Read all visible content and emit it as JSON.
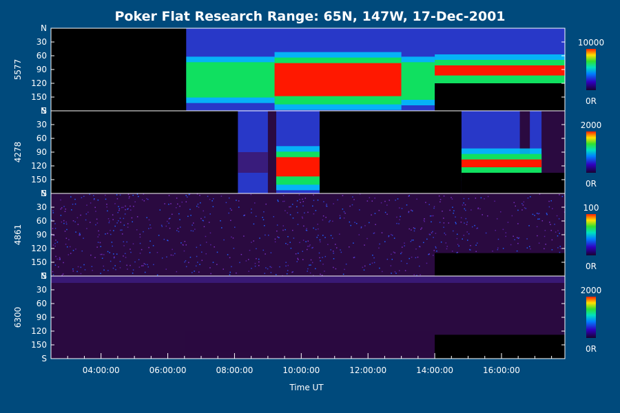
{
  "chart_data": {
    "type": "heatmap",
    "title": "Poker Flat Research Range: 65N, 147W, 17-Dec-2001",
    "xlabel": "Time UT",
    "x_ticks": [
      "04:00:00",
      "06:00:00",
      "08:00:00",
      "10:00:00",
      "12:00:00",
      "14:00:00",
      "16:00:00"
    ],
    "x_tick_hours": [
      4,
      6,
      8,
      10,
      12,
      14,
      16
    ],
    "x_range_hours": [
      2.5,
      17.9
    ],
    "y_ticks": [
      "N",
      "30",
      "60",
      "90",
      "120",
      "150",
      "S"
    ],
    "y_tick_values": [
      0,
      30,
      60,
      90,
      120,
      150,
      180
    ],
    "y_range": [
      0,
      180
    ],
    "colorbar_min_label": "0R",
    "panels": [
      {
        "wavelength": "5577",
        "colorbar_max": "10000",
        "active_hours": [
          [
            6.55,
            17.9
          ]
        ],
        "no_data": [
          {
            "hours": [
              2.5,
              6.55
            ],
            "angles": [
              0,
              180
            ]
          },
          {
            "hours": [
              14.0,
              17.9
            ],
            "angles": [
              120,
              180
            ]
          }
        ],
        "intensity_bands": [
          {
            "hours": [
              6.55,
              9.2
            ],
            "angles": [
              80,
              145
            ],
            "level": "medium"
          },
          {
            "hours": [
              9.2,
              13.0
            ],
            "angles": [
              70,
              160
            ],
            "level": "high"
          },
          {
            "hours": [
              13.0,
              14.0
            ],
            "angles": [
              80,
              150
            ],
            "level": "medium"
          },
          {
            "hours": [
              14.0,
              17.9
            ],
            "angles": [
              75,
              115
            ],
            "level": "high"
          }
        ]
      },
      {
        "wavelength": "4278",
        "colorbar_max": "2000",
        "active_hours": [
          [
            8.1,
            9.0
          ],
          [
            9.25,
            10.55
          ],
          [
            14.8,
            16.55
          ],
          [
            16.85,
            17.2
          ]
        ],
        "no_data": [
          {
            "hours": [
              2.5,
              8.1
            ],
            "angles": [
              0,
              180
            ]
          },
          {
            "hours": [
              10.55,
              14.8
            ],
            "angles": [
              0,
              180
            ]
          },
          {
            "hours": [
              14.8,
              17.9
            ],
            "angles": [
              135,
              180
            ]
          }
        ],
        "intensity_bands": [
          {
            "hours": [
              8.1,
              9.0
            ],
            "angles": [
              90,
              135
            ],
            "level": "low"
          },
          {
            "hours": [
              9.25,
              10.55
            ],
            "angles": [
              95,
              155
            ],
            "level": "high"
          },
          {
            "hours": [
              14.8,
              17.2
            ],
            "angles": [
              100,
              135
            ],
            "level": "high"
          }
        ]
      },
      {
        "wavelength": "4861",
        "colorbar_max": "100",
        "active_hours": [
          [
            2.5,
            17.9
          ]
        ],
        "no_data": [
          {
            "hours": [
              14.0,
              17.9
            ],
            "angles": [
              130,
              180
            ]
          }
        ],
        "intensity_bands": [
          {
            "hours": [
              2.5,
              17.9
            ],
            "angles": [
              0,
              180
            ],
            "level": "noise"
          }
        ]
      },
      {
        "wavelength": "6300",
        "colorbar_max": "2000",
        "active_hours": [
          [
            2.5,
            17.9
          ]
        ],
        "no_data": [
          {
            "hours": [
              14.0,
              17.9
            ],
            "angles": [
              128,
              180
            ]
          }
        ],
        "intensity_bands": [
          {
            "hours": [
              2.5,
              17.9
            ],
            "angles": [
              0,
              15
            ],
            "level": "low"
          },
          {
            "hours": [
              6.5,
              14.0
            ],
            "angles": [
              120,
              165
            ],
            "level": "faint"
          }
        ]
      }
    ],
    "colors": {
      "background": "#004a7c",
      "no_data": "#000000",
      "faint": "#2a0a40",
      "low": "#3a1a78",
      "medium": "#10e060",
      "high": "#ff1800",
      "divider": "#ffffff"
    }
  }
}
